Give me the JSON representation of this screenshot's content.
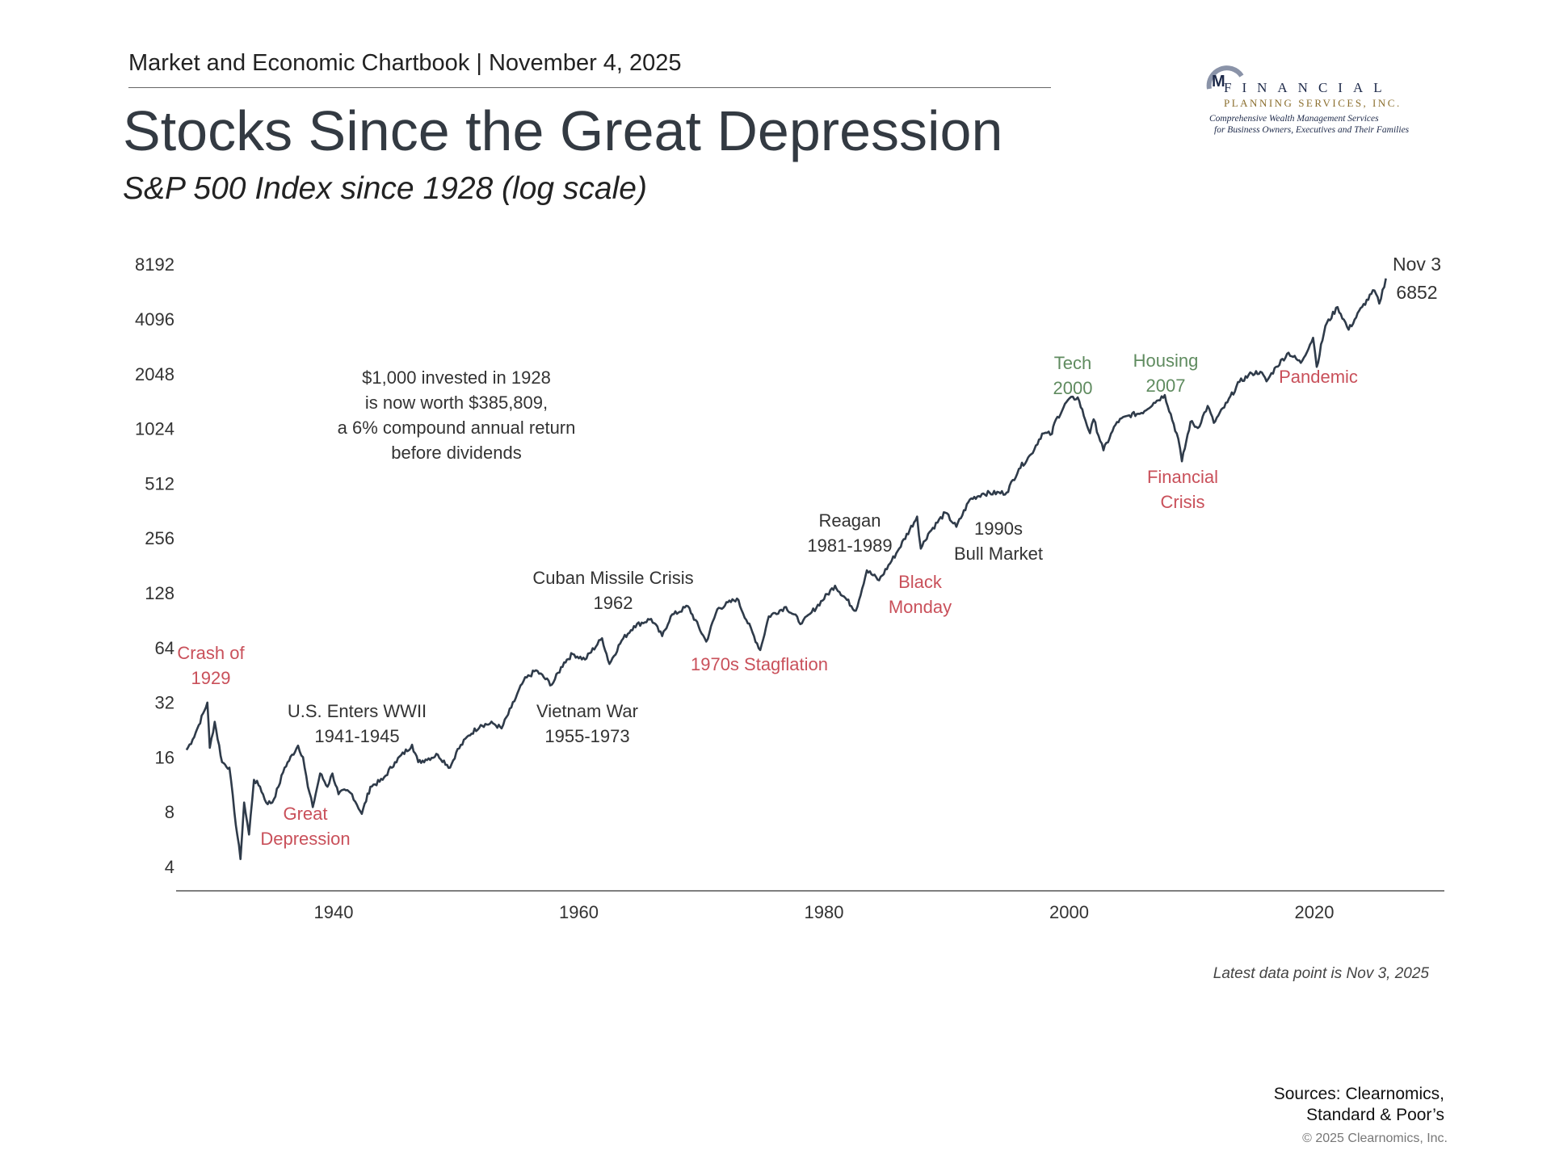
{
  "header": {
    "chartbook": "Market and Economic Chartbook | November 4, 2025",
    "title": "Stocks Since the Great Depression",
    "subtitle": "S&P 500 Index since 1928 (log scale)"
  },
  "logo": {
    "mark": "M",
    "line1": "FINANCIAL",
    "line2": "PLANNING SERVICES, INC.",
    "tagline1": "Comprehensive Wealth Management Services",
    "tagline2": "for Business Owners, Executives and Their Families"
  },
  "colors": {
    "line": "#2f3b4a",
    "negative": "#c9505a",
    "positive": "#5f8b5f",
    "text": "#333333"
  },
  "chart_data": {
    "type": "line",
    "title": "Stocks Since the Great Depression",
    "subtitle": "S&P 500 Index since 1928 (log scale)",
    "y_scale": "log2",
    "ylim": [
      4,
      8192
    ],
    "xlim": [
      1928,
      2030
    ],
    "y_ticks": [
      "8192",
      "4096",
      "2048",
      "1024",
      "512",
      "256",
      "128",
      "64",
      "32",
      "16",
      "8",
      "4"
    ],
    "x_ticks": [
      "1940",
      "1960",
      "1980",
      "2000",
      "2020"
    ],
    "grid": false,
    "series": [
      {
        "points": [
          [
            1928,
            17.5
          ],
          [
            1928.5,
            20
          ],
          [
            1929,
            24
          ],
          [
            1929.7,
            31.9
          ],
          [
            1929.9,
            18
          ],
          [
            1930.3,
            25
          ],
          [
            1930.9,
            15
          ],
          [
            1931.5,
            14
          ],
          [
            1931.9,
            8
          ],
          [
            1932.4,
            4.4
          ],
          [
            1932.7,
            9
          ],
          [
            1933.1,
            6
          ],
          [
            1933.5,
            12
          ],
          [
            1934,
            11
          ],
          [
            1934.5,
            9
          ],
          [
            1935,
            9
          ],
          [
            1935.5,
            11
          ],
          [
            1936,
            14
          ],
          [
            1937.1,
            18.5
          ],
          [
            1937.5,
            16
          ],
          [
            1937.9,
            11
          ],
          [
            1938.3,
            8.5
          ],
          [
            1938.9,
            13
          ],
          [
            1939.5,
            11
          ],
          [
            1939.9,
            13
          ],
          [
            1940.4,
            10
          ],
          [
            1941,
            10.5
          ],
          [
            1941.5,
            10
          ],
          [
            1942.3,
            7.8
          ],
          [
            1943,
            11
          ],
          [
            1944,
            12
          ],
          [
            1945,
            15
          ],
          [
            1946.4,
            18.7
          ],
          [
            1946.9,
            15
          ],
          [
            1947.5,
            15.5
          ],
          [
            1948.5,
            16.5
          ],
          [
            1949.5,
            14
          ],
          [
            1950,
            17
          ],
          [
            1951,
            21
          ],
          [
            1952,
            24
          ],
          [
            1953,
            24.5
          ],
          [
            1953.7,
            23
          ],
          [
            1954.5,
            30
          ],
          [
            1955.5,
            42
          ],
          [
            1956.5,
            48
          ],
          [
            1957.8,
            40
          ],
          [
            1958.8,
            53
          ],
          [
            1959.5,
            59
          ],
          [
            1960.5,
            55
          ],
          [
            1961.9,
            72
          ],
          [
            1962.5,
            52
          ],
          [
            1963.5,
            70
          ],
          [
            1964.5,
            84
          ],
          [
            1965.9,
            92
          ],
          [
            1966.8,
            74
          ],
          [
            1967.5,
            95
          ],
          [
            1968.9,
            108
          ],
          [
            1970.4,
            69
          ],
          [
            1971.3,
            104
          ],
          [
            1972.9,
            119
          ],
          [
            1974.8,
            62
          ],
          [
            1975.5,
            95
          ],
          [
            1976.9,
            107
          ],
          [
            1978.2,
            87
          ],
          [
            1979,
            100
          ],
          [
            1980.9,
            140
          ],
          [
            1982.6,
            102
          ],
          [
            1983.5,
            170
          ],
          [
            1984.5,
            150
          ],
          [
            1985.9,
            211
          ],
          [
            1987.6,
            336
          ],
          [
            1987.9,
            224
          ],
          [
            1988.5,
            270
          ],
          [
            1989.9,
            353
          ],
          [
            1990.8,
            295
          ],
          [
            1991.9,
            417
          ],
          [
            1993,
            450
          ],
          [
            1994.9,
            455
          ],
          [
            1995.9,
            615
          ],
          [
            1996.9,
            740
          ],
          [
            1997.8,
            960
          ],
          [
            1998.6,
            957
          ],
          [
            1998.8,
            1100
          ],
          [
            1999.9,
            1469
          ],
          [
            2000.7,
            1520
          ],
          [
            2001.7,
            965
          ],
          [
            2002,
            1150
          ],
          [
            2002.8,
            777
          ],
          [
            2003.9,
            1111
          ],
          [
            2004.9,
            1211
          ],
          [
            2005.9,
            1248
          ],
          [
            2006.9,
            1418
          ],
          [
            2007.8,
            1565
          ],
          [
            2008.9,
            900
          ],
          [
            2009.2,
            676
          ],
          [
            2009.9,
            1115
          ],
          [
            2010.5,
            1030
          ],
          [
            2011.3,
            1363
          ],
          [
            2011.8,
            1100
          ],
          [
            2012.9,
            1426
          ],
          [
            2013.9,
            1848
          ],
          [
            2014.9,
            2058
          ],
          [
            2015.6,
            2100
          ],
          [
            2016.1,
            1860
          ],
          [
            2016.9,
            2240
          ],
          [
            2017.9,
            2673
          ],
          [
            2018.9,
            2350
          ],
          [
            2019.9,
            3230
          ],
          [
            2020.2,
            2237
          ],
          [
            2020.9,
            3750
          ],
          [
            2021.9,
            4766
          ],
          [
            2022.8,
            3580
          ],
          [
            2023.9,
            4770
          ],
          [
            2024.9,
            5880
          ],
          [
            2025.3,
            4980
          ],
          [
            2025.84,
            6852
          ]
        ]
      }
    ],
    "end_label": {
      "date": "Nov 3",
      "value": "6852"
    },
    "callout": [
      "$1,000 invested in 1928",
      "is now worth $385,809,",
      "a 6% compound annual return",
      "before dividends"
    ],
    "annotations": {
      "crash": [
        "Crash of",
        "1929"
      ],
      "depression": [
        "Great",
        "Depression"
      ],
      "wwii": [
        "U.S. Enters WWII",
        "1941-1945"
      ],
      "cuban": [
        "Cuban Missile Crisis",
        "1962"
      ],
      "vietnam": [
        "Vietnam War",
        "1955-1973"
      ],
      "stagflation": [
        "1970s Stagflation"
      ],
      "reagan": [
        "Reagan",
        "1981-1989"
      ],
      "black_monday": [
        "Black",
        "Monday"
      ],
      "bull": [
        "1990s",
        "Bull Market"
      ],
      "tech": [
        "Tech",
        "2000"
      ],
      "housing": [
        "Housing",
        "2007"
      ],
      "financial": [
        "Financial",
        "Crisis"
      ],
      "pandemic": [
        "Pandemic"
      ]
    }
  },
  "footer": {
    "latest": "Latest data point is Nov 3, 2025",
    "sources1": "Sources: Clearnomics,",
    "sources2": "Standard & Poor’s",
    "copyright": "© 2025 Clearnomics, Inc."
  }
}
